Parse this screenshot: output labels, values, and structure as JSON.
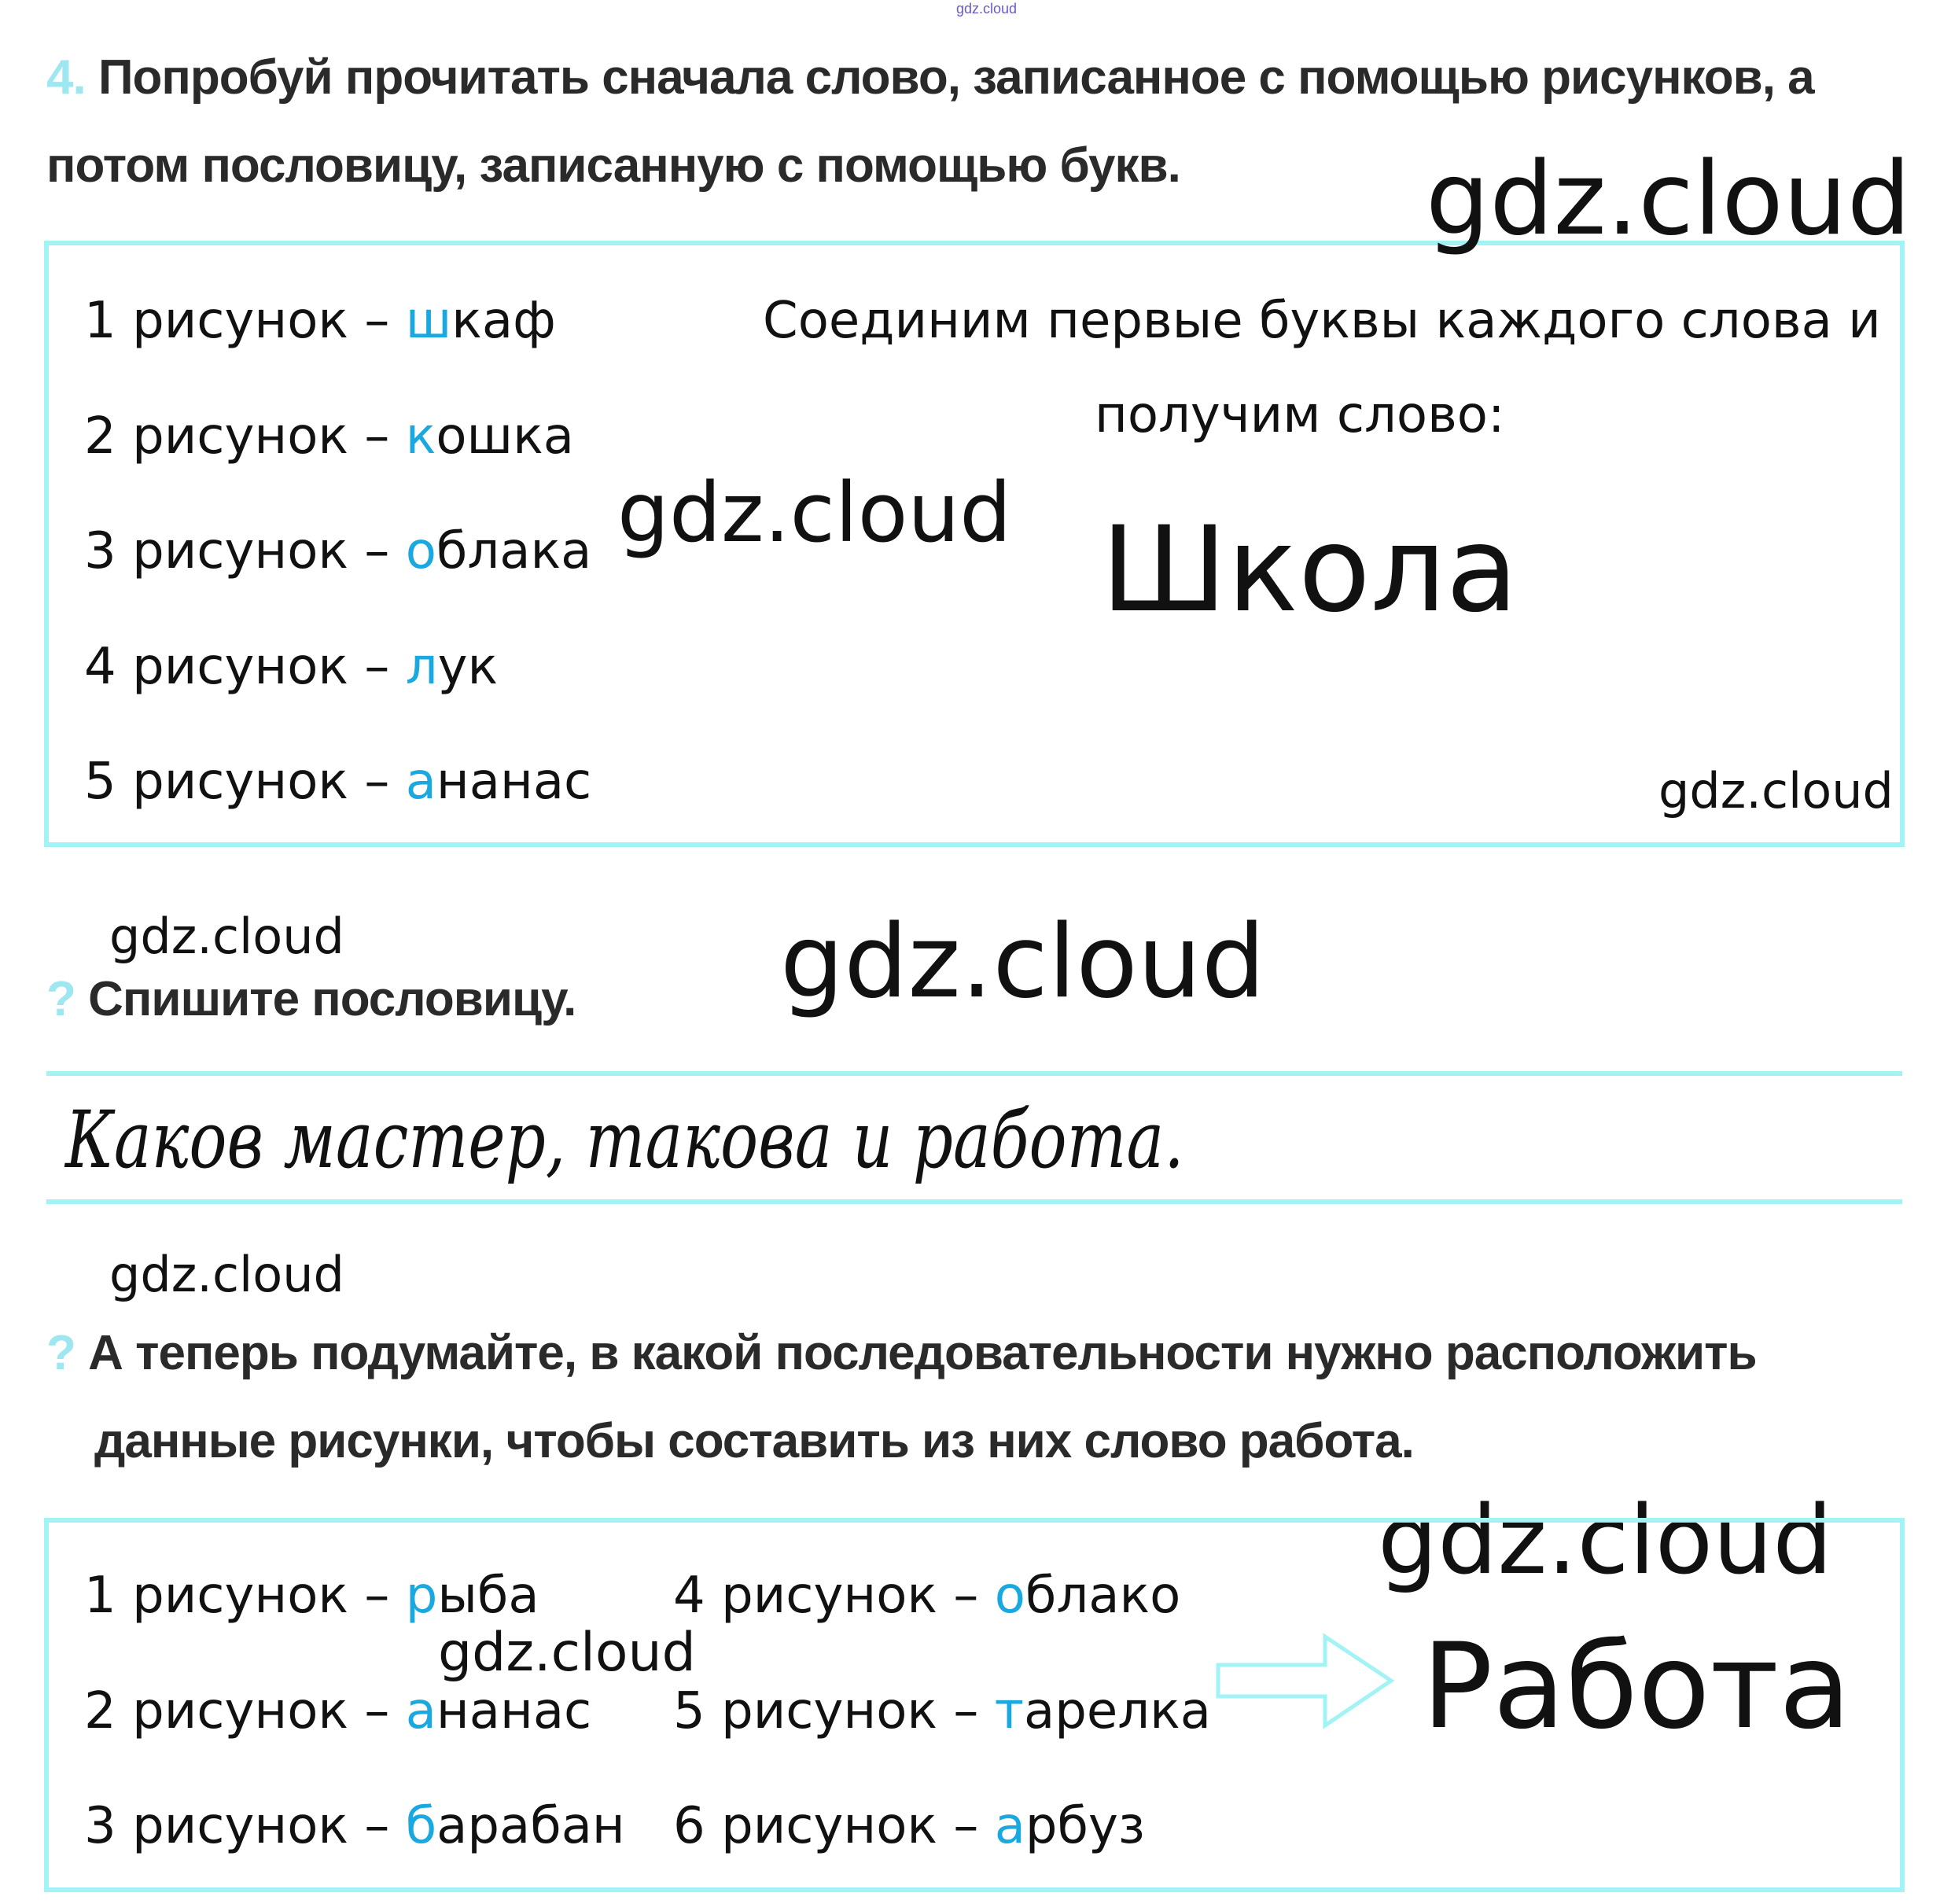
{
  "watermarks": {
    "top_small": "gdz.cloud",
    "text": "gdz.cloud"
  },
  "task": {
    "number": "4.",
    "line1": "Попробуй прочитать сначала слово, записанное с помощью рисунков, а",
    "line2": "потом пословицу, записанную с помощью букв."
  },
  "box1": {
    "items": [
      {
        "prefix": "1 рисунок – ",
        "first": "ш",
        "rest": "каф"
      },
      {
        "prefix": "2 рисунок – ",
        "first": "к",
        "rest": "ошка"
      },
      {
        "prefix": "3 рисунок – ",
        "first": "о",
        "rest": "блака"
      },
      {
        "prefix": "4 рисунок – ",
        "first": "л",
        "rest": "ук"
      },
      {
        "prefix": "5 рисунок – ",
        "first": "а",
        "rest": "нанас"
      }
    ],
    "explain_line1": "Соединим первые буквы каждого слова и",
    "explain_line2": "получим слово:",
    "answer": "Школа"
  },
  "question1": {
    "mark": "?",
    "text": "Спишите пословицу."
  },
  "proverb": "Каков мастер, такова и работа.",
  "question2": {
    "mark": "?",
    "line1": "А теперь подумайте, в какой последовательности нужно расположить",
    "line2": "данные рисунки, чтобы составить из них слово работа."
  },
  "box2": {
    "col1": [
      {
        "prefix": "1 рисунок – ",
        "first": "р",
        "rest": "ыба"
      },
      {
        "prefix": "2 рисунок – ",
        "first": "а",
        "rest": "нанас"
      },
      {
        "prefix": "3 рисунок – ",
        "first": "б",
        "rest": "арабан"
      }
    ],
    "col2": [
      {
        "prefix": "4 рисунок – ",
        "first": "о",
        "rest": "блако"
      },
      {
        "prefix": "5 рисунок – ",
        "first": "т",
        "rest": "арелка"
      },
      {
        "prefix": "6 рисунок – ",
        "first": "а",
        "rest": "рбуз"
      }
    ],
    "arrow_icon": "right-arrow-outline",
    "answer": "Работа"
  },
  "colors": {
    "accent": "#1aa8e0",
    "border": "#a2f3f5",
    "number": "#9ee6f0"
  }
}
